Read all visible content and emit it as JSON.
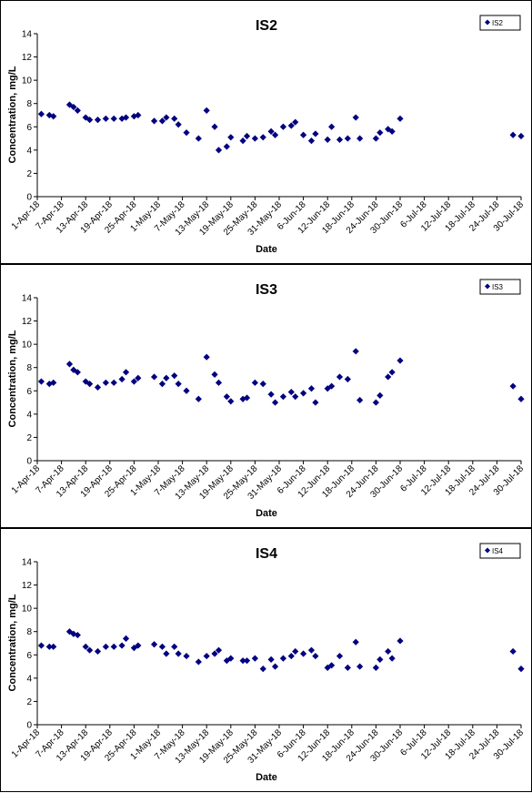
{
  "chart_data": [
    {
      "type": "scatter",
      "title": "IS2",
      "xlabel": "Date",
      "ylabel": "Concentration, mg/L",
      "ylim": [
        0,
        14
      ],
      "yticks": [
        0,
        2,
        4,
        6,
        8,
        10,
        12,
        14
      ],
      "xlim": [
        "2018-04-01",
        "2018-07-30"
      ],
      "xticks": [
        "1-Apr-18",
        "7-Apr-18",
        "13-Apr-18",
        "19-Apr-18",
        "25-Apr-18",
        "1-May-18",
        "7-May-18",
        "13-May-18",
        "19-May-18",
        "25-May-18",
        "31-May-18",
        "6-Jun-18",
        "12-Jun-18",
        "18-Jun-18",
        "24-Jun-18",
        "30-Jun-18",
        "6-Jul-18",
        "12-Jul-18",
        "18-Jul-18",
        "24-Jul-18",
        "30-Jul-18"
      ],
      "grid": false,
      "legend": "top-right",
      "color": "#000080",
      "marker": "diamond",
      "series": [
        {
          "name": "IS2",
          "points": [
            [
              "2018-04-02",
              7.1
            ],
            [
              "2018-04-04",
              7.0
            ],
            [
              "2018-04-05",
              6.9
            ],
            [
              "2018-04-09",
              7.9
            ],
            [
              "2018-04-10",
              7.7
            ],
            [
              "2018-04-11",
              7.4
            ],
            [
              "2018-04-13",
              6.8
            ],
            [
              "2018-04-14",
              6.6
            ],
            [
              "2018-04-16",
              6.6
            ],
            [
              "2018-04-18",
              6.7
            ],
            [
              "2018-04-20",
              6.7
            ],
            [
              "2018-04-22",
              6.7
            ],
            [
              "2018-04-23",
              6.8
            ],
            [
              "2018-04-25",
              6.9
            ],
            [
              "2018-04-26",
              7.0
            ],
            [
              "2018-04-30",
              6.5
            ],
            [
              "2018-05-02",
              6.5
            ],
            [
              "2018-05-03",
              6.8
            ],
            [
              "2018-05-05",
              6.7
            ],
            [
              "2018-05-06",
              6.2
            ],
            [
              "2018-05-08",
              5.5
            ],
            [
              "2018-05-11",
              5.0
            ],
            [
              "2018-05-13",
              7.4
            ],
            [
              "2018-05-15",
              6.0
            ],
            [
              "2018-05-16",
              4.0
            ],
            [
              "2018-05-18",
              4.3
            ],
            [
              "2018-05-19",
              5.1
            ],
            [
              "2018-05-22",
              4.8
            ],
            [
              "2018-05-23",
              5.2
            ],
            [
              "2018-05-25",
              5.0
            ],
            [
              "2018-05-27",
              5.1
            ],
            [
              "2018-05-29",
              5.6
            ],
            [
              "2018-05-30",
              5.3
            ],
            [
              "2018-06-01",
              6.0
            ],
            [
              "2018-06-03",
              6.1
            ],
            [
              "2018-06-04",
              6.4
            ],
            [
              "2018-06-06",
              5.3
            ],
            [
              "2018-06-08",
              4.8
            ],
            [
              "2018-06-09",
              5.4
            ],
            [
              "2018-06-12",
              4.9
            ],
            [
              "2018-06-13",
              6.0
            ],
            [
              "2018-06-15",
              4.9
            ],
            [
              "2018-06-17",
              5.0
            ],
            [
              "2018-06-19",
              6.8
            ],
            [
              "2018-06-20",
              5.0
            ],
            [
              "2018-06-24",
              5.0
            ],
            [
              "2018-06-25",
              5.5
            ],
            [
              "2018-06-27",
              5.8
            ],
            [
              "2018-06-28",
              5.6
            ],
            [
              "2018-06-30",
              6.7
            ],
            [
              "2018-07-28",
              5.3
            ],
            [
              "2018-07-30",
              5.2
            ]
          ]
        }
      ]
    },
    {
      "type": "scatter",
      "title": "IS3",
      "xlabel": "Date",
      "ylabel": "Concentration, mg/L",
      "ylim": [
        0,
        14
      ],
      "yticks": [
        0,
        2,
        4,
        6,
        8,
        10,
        12,
        14
      ],
      "xlim": [
        "2018-04-01",
        "2018-07-30"
      ],
      "xticks": [
        "1-Apr-18",
        "7-Apr-18",
        "13-Apr-18",
        "19-Apr-18",
        "25-Apr-18",
        "1-May-18",
        "7-May-18",
        "13-May-18",
        "19-May-18",
        "25-May-18",
        "31-May-18",
        "6-Jun-18",
        "12-Jun-18",
        "18-Jun-18",
        "24-Jun-18",
        "30-Jun-18",
        "6-Jul-18",
        "12-Jul-18",
        "18-Jul-18",
        "24-Jul-18",
        "30-Jul-18"
      ],
      "grid": false,
      "legend": "top-right",
      "color": "#000080",
      "marker": "diamond",
      "series": [
        {
          "name": "IS3",
          "points": [
            [
              "2018-04-02",
              6.8
            ],
            [
              "2018-04-04",
              6.6
            ],
            [
              "2018-04-05",
              6.7
            ],
            [
              "2018-04-09",
              8.3
            ],
            [
              "2018-04-10",
              7.8
            ],
            [
              "2018-04-11",
              7.6
            ],
            [
              "2018-04-13",
              6.8
            ],
            [
              "2018-04-14",
              6.6
            ],
            [
              "2018-04-16",
              6.3
            ],
            [
              "2018-04-18",
              6.7
            ],
            [
              "2018-04-20",
              6.7
            ],
            [
              "2018-04-22",
              7.0
            ],
            [
              "2018-04-23",
              7.6
            ],
            [
              "2018-04-25",
              6.8
            ],
            [
              "2018-04-26",
              7.1
            ],
            [
              "2018-04-30",
              7.2
            ],
            [
              "2018-05-02",
              6.6
            ],
            [
              "2018-05-03",
              7.1
            ],
            [
              "2018-05-05",
              7.3
            ],
            [
              "2018-05-06",
              6.6
            ],
            [
              "2018-05-08",
              6.0
            ],
            [
              "2018-05-11",
              5.3
            ],
            [
              "2018-05-13",
              8.9
            ],
            [
              "2018-05-15",
              7.4
            ],
            [
              "2018-05-16",
              6.7
            ],
            [
              "2018-05-18",
              5.5
            ],
            [
              "2018-05-19",
              5.1
            ],
            [
              "2018-05-22",
              5.3
            ],
            [
              "2018-05-23",
              5.4
            ],
            [
              "2018-05-25",
              6.7
            ],
            [
              "2018-05-27",
              6.6
            ],
            [
              "2018-05-29",
              5.7
            ],
            [
              "2018-05-30",
              5.0
            ],
            [
              "2018-06-01",
              5.5
            ],
            [
              "2018-06-03",
              5.9
            ],
            [
              "2018-06-04",
              5.5
            ],
            [
              "2018-06-06",
              5.8
            ],
            [
              "2018-06-08",
              6.2
            ],
            [
              "2018-06-09",
              5.0
            ],
            [
              "2018-06-12",
              6.2
            ],
            [
              "2018-06-13",
              6.4
            ],
            [
              "2018-06-15",
              7.2
            ],
            [
              "2018-06-17",
              7.0
            ],
            [
              "2018-06-19",
              9.4
            ],
            [
              "2018-06-20",
              5.2
            ],
            [
              "2018-06-24",
              5.0
            ],
            [
              "2018-06-25",
              5.6
            ],
            [
              "2018-06-27",
              7.2
            ],
            [
              "2018-06-28",
              7.6
            ],
            [
              "2018-06-30",
              8.6
            ],
            [
              "2018-07-28",
              6.4
            ],
            [
              "2018-07-30",
              5.3
            ]
          ]
        }
      ]
    },
    {
      "type": "scatter",
      "title": "IS4",
      "xlabel": "Date",
      "ylabel": "Concentration, mg/L",
      "ylim": [
        0,
        14
      ],
      "yticks": [
        0,
        2,
        4,
        6,
        8,
        10,
        12,
        14
      ],
      "xlim": [
        "2018-04-01",
        "2018-07-30"
      ],
      "xticks": [
        "1-Apr-18",
        "7-Apr-18",
        "13-Apr-18",
        "19-Apr-18",
        "25-Apr-18",
        "1-May-18",
        "7-May-18",
        "13-May-18",
        "19-May-18",
        "25-May-18",
        "31-May-18",
        "6-Jun-18",
        "12-Jun-18",
        "18-Jun-18",
        "24-Jun-18",
        "30-Jun-18",
        "6-Jul-18",
        "12-Jul-18",
        "18-Jul-18",
        "24-Jul-18",
        "30-Jul-18"
      ],
      "grid": false,
      "legend": "top-right",
      "color": "#000080",
      "marker": "diamond",
      "series": [
        {
          "name": "IS4",
          "points": [
            [
              "2018-04-02",
              6.8
            ],
            [
              "2018-04-04",
              6.7
            ],
            [
              "2018-04-05",
              6.7
            ],
            [
              "2018-04-09",
              8.0
            ],
            [
              "2018-04-10",
              7.8
            ],
            [
              "2018-04-11",
              7.7
            ],
            [
              "2018-04-13",
              6.7
            ],
            [
              "2018-04-14",
              6.4
            ],
            [
              "2018-04-16",
              6.3
            ],
            [
              "2018-04-18",
              6.7
            ],
            [
              "2018-04-20",
              6.7
            ],
            [
              "2018-04-22",
              6.8
            ],
            [
              "2018-04-23",
              7.4
            ],
            [
              "2018-04-25",
              6.6
            ],
            [
              "2018-04-26",
              6.8
            ],
            [
              "2018-04-30",
              6.9
            ],
            [
              "2018-05-02",
              6.7
            ],
            [
              "2018-05-03",
              6.1
            ],
            [
              "2018-05-05",
              6.7
            ],
            [
              "2018-05-06",
              6.1
            ],
            [
              "2018-05-08",
              5.9
            ],
            [
              "2018-05-11",
              5.4
            ],
            [
              "2018-05-13",
              5.9
            ],
            [
              "2018-05-15",
              6.1
            ],
            [
              "2018-05-16",
              6.4
            ],
            [
              "2018-05-18",
              5.5
            ],
            [
              "2018-05-19",
              5.7
            ],
            [
              "2018-05-22",
              5.5
            ],
            [
              "2018-05-23",
              5.5
            ],
            [
              "2018-05-25",
              5.7
            ],
            [
              "2018-05-27",
              4.8
            ],
            [
              "2018-05-29",
              5.6
            ],
            [
              "2018-05-30",
              5.0
            ],
            [
              "2018-06-01",
              5.7
            ],
            [
              "2018-06-03",
              5.9
            ],
            [
              "2018-06-04",
              6.3
            ],
            [
              "2018-06-06",
              6.1
            ],
            [
              "2018-06-08",
              6.4
            ],
            [
              "2018-06-09",
              5.9
            ],
            [
              "2018-06-12",
              4.9
            ],
            [
              "2018-06-13",
              5.1
            ],
            [
              "2018-06-15",
              5.9
            ],
            [
              "2018-06-17",
              4.9
            ],
            [
              "2018-06-19",
              7.1
            ],
            [
              "2018-06-20",
              5.0
            ],
            [
              "2018-06-24",
              4.9
            ],
            [
              "2018-06-25",
              5.6
            ],
            [
              "2018-06-27",
              6.3
            ],
            [
              "2018-06-28",
              5.7
            ],
            [
              "2018-06-30",
              7.2
            ],
            [
              "2018-07-28",
              6.3
            ],
            [
              "2018-07-30",
              4.8
            ]
          ]
        }
      ]
    }
  ]
}
